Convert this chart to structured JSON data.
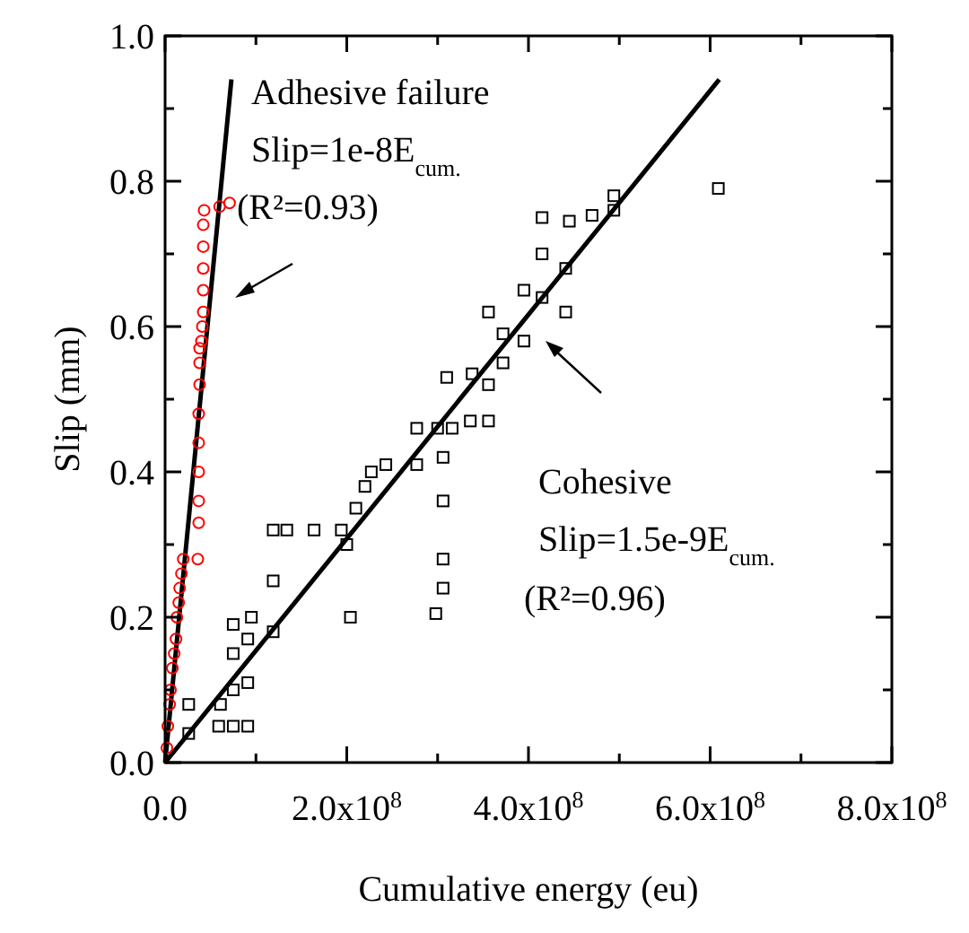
{
  "chart_data": {
    "type": "scatter",
    "xlabel": "Cumulative energy (eu)",
    "ylabel": "Slip (mm)",
    "xlim": [
      0,
      800000000
    ],
    "ylim": [
      0,
      1.0
    ],
    "xticks": [
      {
        "value": 0,
        "label": "0.0"
      },
      {
        "value": 100000000,
        "label": null
      },
      {
        "value": 200000000,
        "label": "2.0x10$^{8}$"
      },
      {
        "value": 300000000,
        "label": null
      },
      {
        "value": 400000000,
        "label": "4.0x10$^{8}$"
      },
      {
        "value": 500000000,
        "label": null
      },
      {
        "value": 600000000,
        "label": "6.0x10$^{8}$"
      },
      {
        "value": 700000000,
        "label": null
      },
      {
        "value": 800000000,
        "label": "8.0x10$^{8}$"
      }
    ],
    "yticks": [
      {
        "value": 0,
        "label": "0.0"
      },
      {
        "value": 0.1,
        "label": null
      },
      {
        "value": 0.2,
        "label": "0.2"
      },
      {
        "value": 0.3,
        "label": null
      },
      {
        "value": 0.4,
        "label": "0.4"
      },
      {
        "value": 0.5,
        "label": null
      },
      {
        "value": 0.6,
        "label": "0.6"
      },
      {
        "value": 0.7,
        "label": null
      },
      {
        "value": 0.8,
        "label": "0.8"
      },
      {
        "value": 0.9,
        "label": null
      },
      {
        "value": 1.0,
        "label": "1.0"
      }
    ],
    "grid": false,
    "series": [
      {
        "marker": "circle",
        "color": "#ff0000",
        "x": [
          2000000,
          3000000,
          5000000,
          6000000,
          8000000,
          10000000,
          12000000,
          13000000,
          15000000,
          16000000,
          18000000,
          20000000,
          36000000,
          37000000,
          37000000,
          37000000,
          37000000,
          37000000,
          38000000,
          38000000,
          38000000,
          40000000,
          41000000,
          42000000,
          42000000,
          42000000,
          42000000,
          42000000,
          43000000,
          60000000,
          71000000
        ],
        "values": [
          0.02,
          0.05,
          0.08,
          0.1,
          0.13,
          0.15,
          0.17,
          0.2,
          0.22,
          0.24,
          0.26,
          0.28,
          0.28,
          0.33,
          0.36,
          0.4,
          0.44,
          0.48,
          0.52,
          0.55,
          0.57,
          0.58,
          0.6,
          0.62,
          0.65,
          0.68,
          0.71,
          0.74,
          0.76,
          0.765,
          0.77
        ]
      },
      {
        "marker": "square",
        "color": "#000000",
        "x": [
          26000000,
          26000000,
          59000000,
          61000000,
          75000000,
          75000000,
          75000000,
          75000000,
          91000000,
          91000000,
          91000000,
          95000000,
          119000000,
          119000000,
          119000000,
          134000000,
          164000000,
          194000000,
          204000000,
          200000000,
          210000000,
          220000000,
          227000000,
          243000000,
          277000000,
          277000000,
          298000000,
          306000000,
          306000000,
          306000000,
          306000000,
          300000000,
          310000000,
          316000000,
          336000000,
          356000000,
          338000000,
          356000000,
          356000000,
          372000000,
          372000000,
          395000000,
          395000000,
          415000000,
          415000000,
          415000000,
          441000000,
          441000000,
          445000000,
          470000000,
          494000000,
          494000000,
          609000000
        ],
        "values": [
          0.04,
          0.08,
          0.05,
          0.08,
          0.05,
          0.1,
          0.15,
          0.19,
          0.05,
          0.11,
          0.17,
          0.2,
          0.18,
          0.25,
          0.32,
          0.32,
          0.32,
          0.32,
          0.2,
          0.3,
          0.35,
          0.38,
          0.4,
          0.41,
          0.41,
          0.46,
          0.205,
          0.24,
          0.28,
          0.36,
          0.42,
          0.46,
          0.53,
          0.46,
          0.47,
          0.47,
          0.535,
          0.52,
          0.62,
          0.55,
          0.59,
          0.58,
          0.65,
          0.64,
          0.7,
          0.75,
          0.62,
          0.68,
          0.745,
          0.753,
          0.76,
          0.78,
          0.79
        ]
      },
      {
        "type": "line",
        "color": "#000000",
        "x": [
          0,
          73000000
        ],
        "values": [
          0,
          0.94
        ]
      },
      {
        "type": "line",
        "color": "#000000",
        "x": [
          0,
          610000000
        ],
        "values": [
          0,
          0.94
        ]
      }
    ],
    "annotations": [
      "Adhesive failure",
      "Slip=1e-8E$_{cum.}$",
      "(R²=0.93)",
      "Cohesive",
      "Slip=1.5e-9E$_{cum.}$",
      "(R²=0.96)"
    ]
  }
}
